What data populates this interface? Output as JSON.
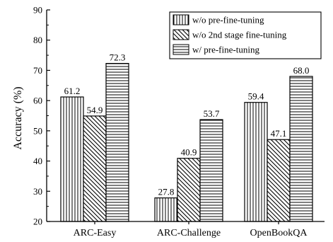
{
  "chart_data": {
    "type": "bar",
    "categories": [
      "ARC-Easy",
      "ARC-Challenge",
      "OpenBookQA"
    ],
    "series": [
      {
        "name": "w/o pre-fine-tuning",
        "values": [
          61.2,
          27.8,
          59.4
        ],
        "pattern": "vertical-lines"
      },
      {
        "name": "w/o 2nd stage fine-tuning",
        "values": [
          54.9,
          40.9,
          47.1
        ],
        "pattern": "diagonal-lines"
      },
      {
        "name": "w/ pre-fine-tuning",
        "values": [
          72.3,
          53.7,
          68.0
        ],
        "pattern": "horizontal-lines"
      }
    ],
    "data_labels": [
      [
        "61.2",
        "27.8",
        "59.4"
      ],
      [
        "54.9",
        "40.9",
        "47.1"
      ],
      [
        "72.3",
        "53.7",
        "68.0"
      ]
    ],
    "ylabel": "Accuracy (%)",
    "xlabel": "",
    "ylim": [
      20,
      90
    ],
    "yticks": [
      20,
      30,
      40,
      50,
      60,
      70,
      80,
      90
    ],
    "ytick_labels": [
      "20",
      "30",
      "40",
      "50",
      "60",
      "70",
      "80",
      "90"
    ],
    "grid": false,
    "legend_position": "top-right",
    "colors": {
      "stroke": "#000000",
      "fill": "#ffffff"
    }
  }
}
